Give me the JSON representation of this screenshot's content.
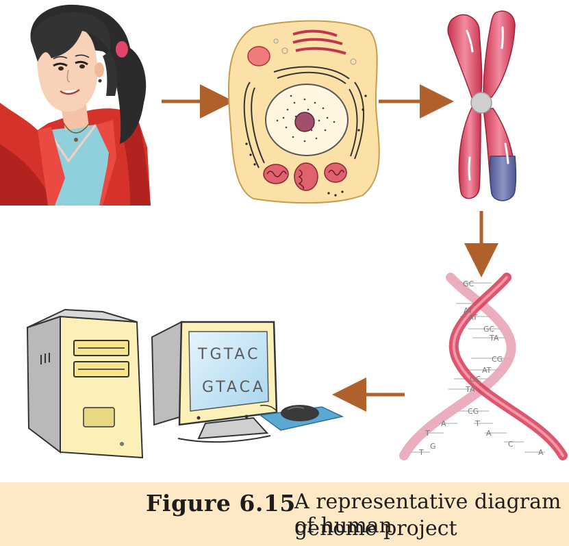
{
  "screen": {
    "line1": "TGTAC",
    "line2": "GTACA"
  },
  "dna_pairs": [
    "GC",
    "AT",
    "AT",
    "GC",
    "TA",
    "CG",
    "AT",
    "GC",
    "TA",
    "CG"
  ],
  "dna_bases": [
    "A",
    "T",
    "T",
    "A",
    "G",
    "C",
    "T",
    "A"
  ],
  "caption": {
    "label": "Figure 6.15",
    "text_line1": "A representative diagram of human",
    "text_line2": "genome project"
  },
  "colors": {
    "arrow": "#b0612b",
    "caption_background": "#fde9c6",
    "chromosome": "#e2566f",
    "chromosome_band": "#6a75a8",
    "cell": "#fbe0a8",
    "monitor_screen": "#c9e6f5",
    "computer_case": "#fbf1b8"
  },
  "icons": [
    "girl-figure",
    "cell-figure",
    "chromosome-figure",
    "dna-figure",
    "computer-figure"
  ]
}
